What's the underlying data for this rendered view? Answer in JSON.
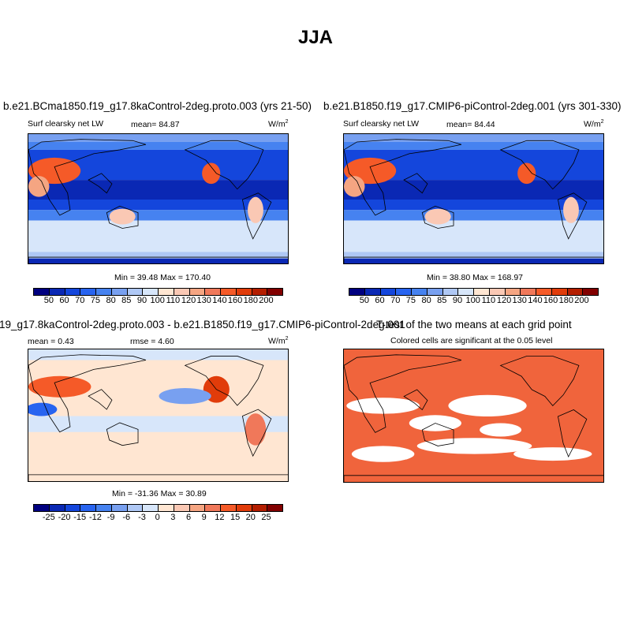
{
  "figure_title": "JJA",
  "colors": [
    "#000080",
    "#0a28b4",
    "#1446dc",
    "#2864f0",
    "#4682f0",
    "#78a0f0",
    "#afc8f5",
    "#d7e6fa",
    "#ffe6d2",
    "#fac8b4",
    "#f5a582",
    "#f0785a",
    "#f55a28",
    "#e13c0a",
    "#b41e00",
    "#820000"
  ],
  "panels": [
    {
      "title": "b.e21.BCma1850.f19_g17.8kaControl-2deg.proto.003 (yrs 21-50)",
      "variable": "Surf clearsky net LW",
      "mean": "mean=  84.87",
      "units": "W/m",
      "units_sup": "2",
      "minmax": "Min =  39.48 Max = 170.40",
      "levels": [
        "50",
        "60",
        "70",
        "75",
        "80",
        "85",
        "90",
        "100",
        "110",
        "120",
        "130",
        "140",
        "160",
        "180",
        "200"
      ]
    },
    {
      "title": "b.e21.B1850.f19_g17.CMIP6-piControl-2deg.001 (yrs 301-330)",
      "variable": "Surf clearsky net LW",
      "mean": "mean=  84.44",
      "units": "W/m",
      "units_sup": "2",
      "minmax": "Min =  38.80 Max = 168.97",
      "levels": [
        "50",
        "60",
        "70",
        "75",
        "80",
        "85",
        "90",
        "100",
        "110",
        "120",
        "130",
        "140",
        "160",
        "180",
        "200"
      ]
    },
    {
      "title": "19_g17.8kaControl-2deg.proto.003 - b.e21.B1850.f19_g17.CMIP6-piControl-2deg.001",
      "mean": "mean =   0.43",
      "rmse": "rmse =   4.60",
      "units": "W/m",
      "units_sup": "2",
      "minmax": "Min = -31.36 Max =  30.89",
      "levels": [
        "-25",
        "-20",
        "-15",
        "-12",
        "-9",
        "-6",
        "-3",
        "0",
        "3",
        "6",
        "9",
        "12",
        "15",
        "20",
        "25"
      ]
    },
    {
      "title": "T-test of the two means at each grid point",
      "subtitle": "Colored cells are significant at the 0.05 level",
      "fill_color": "#f0643c"
    }
  ]
}
